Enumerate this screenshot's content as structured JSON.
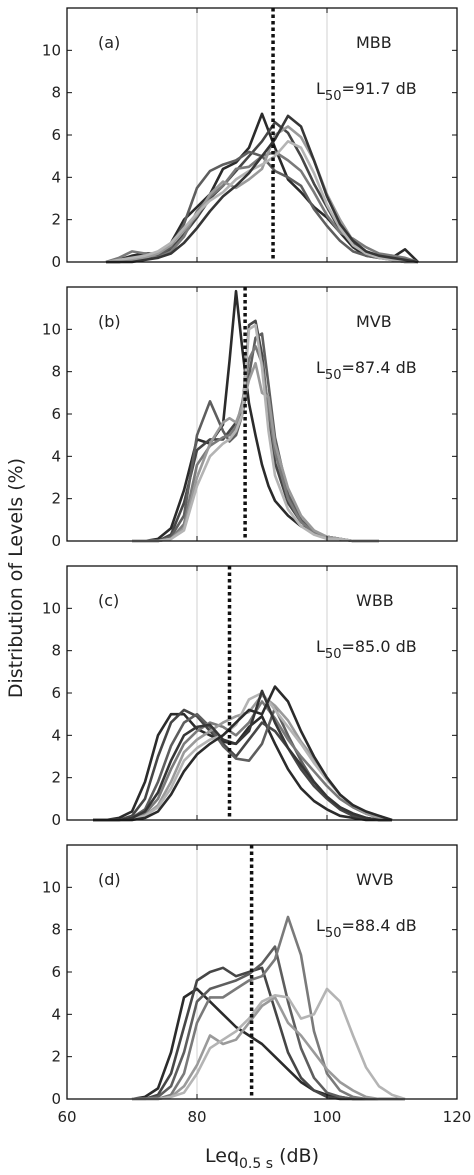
{
  "figure": {
    "ylabel": "Distribution of Levels (%)",
    "xlabel_main": "Leq",
    "xlabel_sub": "0.5 s",
    "xlabel_unit": " (dB)",
    "xlim": [
      60,
      120
    ],
    "ylim": [
      0,
      12
    ],
    "xticks": [
      60,
      80,
      100,
      120
    ],
    "yticks": [
      0,
      2,
      4,
      6,
      8,
      10
    ],
    "grid": "vertical lines at x ticks",
    "line_colors": [
      "#2b2b2b",
      "#464646",
      "#5e5e5e",
      "#7a7a7a",
      "#9a9a9a",
      "#b4b4b4",
      "#363636"
    ]
  },
  "chart_data": [
    {
      "type": "line",
      "panel_label": "(a)",
      "condition": "MBB",
      "l50_prefix": "L",
      "l50_sub": "50",
      "l50_value": "=91.7 dB",
      "l50": 91.7,
      "x": [
        66,
        68,
        70,
        72,
        74,
        76,
        78,
        80,
        82,
        84,
        86,
        88,
        90,
        92,
        94,
        96,
        98,
        100,
        102,
        104,
        106,
        108,
        110,
        112,
        114
      ],
      "series": [
        {
          "values": [
            0.0,
            0.1,
            0.3,
            0.4,
            0.4,
            0.9,
            2.0,
            2.6,
            3.2,
            4.4,
            4.7,
            5.4,
            7.0,
            5.4,
            3.9,
            3.3,
            2.6,
            2.1,
            1.4,
            0.7,
            0.3,
            0.2,
            0.2,
            0.6,
            0.0
          ]
        },
        {
          "values": [
            0.0,
            0.0,
            0.1,
            0.2,
            0.3,
            0.6,
            1.3,
            2.1,
            3.0,
            3.6,
            4.3,
            5.0,
            5.7,
            6.6,
            6.1,
            5.0,
            3.7,
            2.6,
            1.5,
            0.9,
            0.4,
            0.2,
            0.3,
            0.0,
            0.0
          ]
        },
        {
          "values": [
            0.0,
            0.0,
            0.1,
            0.2,
            0.3,
            0.7,
            1.8,
            3.5,
            4.3,
            4.6,
            4.8,
            5.2,
            5.0,
            4.3,
            4.0,
            3.6,
            2.5,
            1.7,
            1.0,
            0.5,
            0.3,
            0.2,
            0.1,
            0.0,
            0.0
          ]
        },
        {
          "values": [
            0.0,
            0.2,
            0.5,
            0.4,
            0.2,
            0.5,
            1.2,
            2.4,
            3.1,
            3.6,
            4.4,
            4.5,
            5.0,
            5.2,
            4.8,
            4.3,
            3.3,
            2.2,
            1.4,
            1.1,
            0.7,
            0.4,
            0.3,
            0.2,
            0.0
          ]
        },
        {
          "values": [
            0.0,
            0.0,
            0.1,
            0.2,
            0.4,
            0.8,
            1.5,
            2.2,
            3.2,
            3.8,
            3.5,
            3.9,
            4.4,
            6.0,
            6.4,
            5.9,
            4.8,
            3.2,
            2.0,
            1.0,
            0.5,
            0.3,
            0.1,
            0.0,
            0.0
          ]
        },
        {
          "values": [
            0.0,
            0.1,
            0.2,
            0.3,
            0.5,
            0.9,
            1.6,
            2.3,
            2.9,
            3.3,
            3.9,
            4.3,
            4.6,
            5.0,
            5.7,
            5.4,
            4.2,
            2.7,
            1.6,
            0.8,
            0.4,
            0.2,
            0.1,
            0.0,
            0.0
          ]
        },
        {
          "values": [
            0.0,
            0.0,
            0.0,
            0.1,
            0.2,
            0.4,
            0.9,
            1.6,
            2.4,
            3.1,
            3.6,
            4.2,
            5.0,
            5.8,
            6.9,
            6.4,
            4.8,
            3.1,
            1.8,
            1.0,
            0.5,
            0.3,
            0.2,
            0.1,
            0.0
          ]
        }
      ]
    },
    {
      "type": "line",
      "panel_label": "(b)",
      "condition": "MVB",
      "l50_prefix": "L",
      "l50_sub": "50",
      "l50_value": "=87.4 dB",
      "l50": 87.4,
      "x": [
        70,
        72,
        74,
        76,
        78,
        80,
        82,
        84,
        85,
        86,
        87,
        88,
        89,
        90,
        91,
        92,
        94,
        96,
        98,
        100,
        102,
        104,
        106,
        108
      ],
      "series": [
        {
          "values": [
            0.0,
            0.0,
            0.1,
            0.6,
            2.4,
            4.8,
            4.6,
            5.5,
            8.5,
            11.8,
            9.0,
            6.5,
            5.0,
            3.6,
            2.6,
            1.9,
            1.2,
            0.7,
            0.4,
            0.2,
            0.1,
            0.0,
            0.0,
            0.0
          ]
        },
        {
          "values": [
            0.0,
            0.0,
            0.0,
            0.3,
            1.8,
            4.3,
            4.8,
            4.8,
            5.2,
            5.6,
            6.2,
            10.2,
            10.4,
            8.8,
            6.0,
            3.7,
            1.8,
            0.9,
            0.4,
            0.2,
            0.1,
            0.0,
            0.0,
            0.0
          ]
        },
        {
          "values": [
            0.0,
            0.0,
            0.0,
            0.2,
            1.2,
            5.0,
            6.6,
            5.2,
            4.7,
            5.0,
            6.0,
            7.8,
            9.6,
            9.8,
            7.4,
            4.9,
            2.2,
            1.0,
            0.4,
            0.2,
            0.1,
            0.0,
            0.0,
            0.0
          ]
        },
        {
          "values": [
            0.0,
            0.0,
            0.0,
            0.1,
            0.8,
            3.6,
            4.5,
            4.9,
            5.0,
            5.4,
            6.6,
            8.6,
            9.2,
            8.4,
            6.3,
            4.2,
            2.0,
            0.9,
            0.4,
            0.2,
            0.1,
            0.0,
            0.0,
            0.0
          ]
        },
        {
          "values": [
            0.0,
            0.0,
            0.0,
            0.1,
            0.6,
            3.0,
            4.6,
            5.6,
            5.8,
            5.6,
            6.4,
            7.6,
            8.4,
            7.0,
            6.8,
            4.6,
            2.5,
            1.2,
            0.5,
            0.2,
            0.1,
            0.0,
            0.0,
            0.0
          ]
        },
        {
          "values": [
            0.0,
            0.0,
            0.0,
            0.1,
            0.5,
            2.6,
            4.0,
            4.6,
            4.8,
            5.2,
            6.0,
            10.0,
            10.2,
            8.2,
            5.2,
            3.1,
            1.5,
            0.7,
            0.3,
            0.1,
            0.1,
            0.0,
            0.0,
            0.0
          ]
        }
      ]
    },
    {
      "type": "line",
      "panel_label": "(c)",
      "condition": "WBB",
      "l50_prefix": "L",
      "l50_sub": "50",
      "l50_value": "=85.0 dB",
      "l50": 85.0,
      "x": [
        64,
        66,
        68,
        70,
        72,
        74,
        76,
        78,
        80,
        82,
        84,
        86,
        88,
        90,
        92,
        94,
        96,
        98,
        100,
        102,
        104,
        106,
        108,
        110
      ],
      "series": [
        {
          "values": [
            0.0,
            0.0,
            0.1,
            0.4,
            1.8,
            4.0,
            5.0,
            5.0,
            4.3,
            4.0,
            3.7,
            3.6,
            4.4,
            4.9,
            3.6,
            2.4,
            1.5,
            0.9,
            0.5,
            0.2,
            0.1,
            0.0,
            0.0,
            0.0
          ]
        },
        {
          "values": [
            0.0,
            0.0,
            0.0,
            0.2,
            1.0,
            3.0,
            4.6,
            5.2,
            4.9,
            4.2,
            3.6,
            3.0,
            3.8,
            4.6,
            4.2,
            3.4,
            2.4,
            1.6,
            1.0,
            0.5,
            0.2,
            0.1,
            0.0,
            0.0
          ]
        },
        {
          "values": [
            0.0,
            0.0,
            0.0,
            0.1,
            0.5,
            1.8,
            3.5,
            4.6,
            5.0,
            4.4,
            3.5,
            2.9,
            2.8,
            3.6,
            5.3,
            4.0,
            2.8,
            1.8,
            1.1,
            0.6,
            0.3,
            0.1,
            0.0,
            0.0
          ]
        },
        {
          "values": [
            0.0,
            0.0,
            0.0,
            0.1,
            0.3,
            1.0,
            2.4,
            3.6,
            4.2,
            4.6,
            4.4,
            4.0,
            4.6,
            5.6,
            4.8,
            3.8,
            3.0,
            2.3,
            1.6,
            1.0,
            0.6,
            0.3,
            0.1,
            0.0
          ]
        },
        {
          "values": [
            0.0,
            0.0,
            0.0,
            0.1,
            0.2,
            0.7,
            1.8,
            3.2,
            3.8,
            4.2,
            4.6,
            4.9,
            5.1,
            5.9,
            5.4,
            4.7,
            3.7,
            2.9,
            2.0,
            1.2,
            0.7,
            0.3,
            0.1,
            0.0
          ]
        },
        {
          "values": [
            0.0,
            0.0,
            0.0,
            0.0,
            0.2,
            0.6,
            1.5,
            2.8,
            3.4,
            3.8,
            4.0,
            4.5,
            5.7,
            6.0,
            5.2,
            4.4,
            3.6,
            2.7,
            1.9,
            1.2,
            0.7,
            0.4,
            0.2,
            0.0
          ]
        },
        {
          "values": [
            0.0,
            0.0,
            0.0,
            0.1,
            0.4,
            1.3,
            2.8,
            4.0,
            4.4,
            4.5,
            3.8,
            3.6,
            4.2,
            6.1,
            4.6,
            3.4,
            2.6,
            1.8,
            1.1,
            0.6,
            0.3,
            0.1,
            0.0,
            0.0
          ]
        },
        {
          "values": [
            0.0,
            0.0,
            0.0,
            0.0,
            0.1,
            0.4,
            1.2,
            2.3,
            3.1,
            3.6,
            4.0,
            4.6,
            5.2,
            5.0,
            6.3,
            5.6,
            4.2,
            3.0,
            2.0,
            1.2,
            0.7,
            0.4,
            0.2,
            0.0
          ]
        }
      ]
    },
    {
      "type": "line",
      "panel_label": "(d)",
      "condition": "WVB",
      "l50_prefix": "L",
      "l50_sub": "50",
      "l50_value": "=88.4 dB",
      "l50": 88.4,
      "x": [
        70,
        72,
        74,
        76,
        78,
        80,
        82,
        84,
        86,
        88,
        90,
        92,
        94,
        96,
        98,
        100,
        102,
        104,
        106,
        108,
        110,
        112
      ],
      "series": [
        {
          "values": [
            0.0,
            0.1,
            0.5,
            2.2,
            4.8,
            5.2,
            4.6,
            4.0,
            3.4,
            3.0,
            2.6,
            2.0,
            1.4,
            0.8,
            0.4,
            0.2,
            0.1,
            0.0,
            0.0,
            0.0,
            0.0,
            0.0
          ]
        },
        {
          "values": [
            0.0,
            0.0,
            0.2,
            1.2,
            3.4,
            5.6,
            6.0,
            6.2,
            5.8,
            6.0,
            6.2,
            4.2,
            2.2,
            1.0,
            0.4,
            0.1,
            0.0,
            0.0,
            0.0,
            0.0,
            0.0,
            0.0
          ]
        },
        {
          "values": [
            0.0,
            0.0,
            0.1,
            0.6,
            2.2,
            4.6,
            5.2,
            5.4,
            5.6,
            5.9,
            6.4,
            7.2,
            4.6,
            2.4,
            1.0,
            0.3,
            0.1,
            0.0,
            0.0,
            0.0,
            0.0,
            0.0
          ]
        },
        {
          "values": [
            0.0,
            0.0,
            0.0,
            0.2,
            1.2,
            3.6,
            4.8,
            4.8,
            5.2,
            5.6,
            5.8,
            6.6,
            8.6,
            6.8,
            3.2,
            1.2,
            0.4,
            0.1,
            0.0,
            0.0,
            0.0,
            0.0
          ]
        },
        {
          "values": [
            0.0,
            0.0,
            0.0,
            0.1,
            0.6,
            1.6,
            3.0,
            2.6,
            2.8,
            3.6,
            4.4,
            4.8,
            3.6,
            3.0,
            2.2,
            1.4,
            0.8,
            0.4,
            0.1,
            0.0,
            0.0,
            0.0
          ]
        },
        {
          "values": [
            0.0,
            0.0,
            0.0,
            0.1,
            0.3,
            1.2,
            2.4,
            2.8,
            3.2,
            3.8,
            4.6,
            4.9,
            4.8,
            3.8,
            4.0,
            5.2,
            4.6,
            3.0,
            1.5,
            0.6,
            0.2,
            0.0
          ]
        }
      ]
    }
  ]
}
